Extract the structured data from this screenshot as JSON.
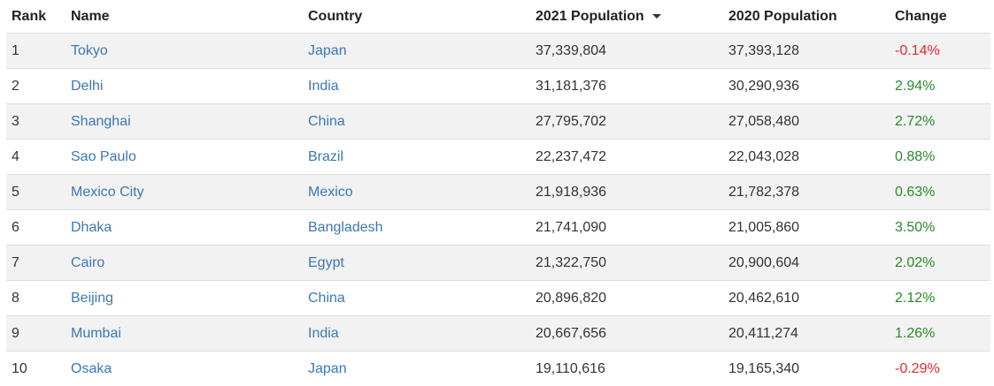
{
  "table": {
    "headers": {
      "rank": "Rank",
      "name": "Name",
      "country": "Country",
      "pop2021": "2021 Population",
      "pop2020": "2020 Population",
      "change": "Change"
    },
    "sorted_by": "2021 Population",
    "sort_direction": "descending",
    "rows": [
      {
        "rank": "1",
        "name": "Tokyo",
        "country": "Japan",
        "pop2021": "37,339,804",
        "pop2020": "37,393,128",
        "change": "-0.14%",
        "trend": "negative"
      },
      {
        "rank": "2",
        "name": "Delhi",
        "country": "India",
        "pop2021": "31,181,376",
        "pop2020": "30,290,936",
        "change": "2.94%",
        "trend": "positive"
      },
      {
        "rank": "3",
        "name": "Shanghai",
        "country": "China",
        "pop2021": "27,795,702",
        "pop2020": "27,058,480",
        "change": "2.72%",
        "trend": "positive"
      },
      {
        "rank": "4",
        "name": "Sao Paulo",
        "country": "Brazil",
        "pop2021": "22,237,472",
        "pop2020": "22,043,028",
        "change": "0.88%",
        "trend": "positive"
      },
      {
        "rank": "5",
        "name": "Mexico City",
        "country": "Mexico",
        "pop2021": "21,918,936",
        "pop2020": "21,782,378",
        "change": "0.63%",
        "trend": "positive"
      },
      {
        "rank": "6",
        "name": "Dhaka",
        "country": "Bangladesh",
        "pop2021": "21,741,090",
        "pop2020": "21,005,860",
        "change": "3.50%",
        "trend": "positive"
      },
      {
        "rank": "7",
        "name": "Cairo",
        "country": "Egypt",
        "pop2021": "21,322,750",
        "pop2020": "20,900,604",
        "change": "2.02%",
        "trend": "positive"
      },
      {
        "rank": "8",
        "name": "Beijing",
        "country": "China",
        "pop2021": "20,896,820",
        "pop2020": "20,462,610",
        "change": "2.12%",
        "trend": "positive"
      },
      {
        "rank": "9",
        "name": "Mumbai",
        "country": "India",
        "pop2021": "20,667,656",
        "pop2020": "20,411,274",
        "change": "1.26%",
        "trend": "positive"
      },
      {
        "rank": "10",
        "name": "Osaka",
        "country": "Japan",
        "pop2021": "19,110,616",
        "pop2020": "19,165,340",
        "change": "-0.29%",
        "trend": "negative"
      }
    ]
  },
  "colors": {
    "link": "#3c77b6",
    "positive": "#2a8a2a",
    "negative": "#e8282b",
    "stripe": "#f2f2f2"
  }
}
